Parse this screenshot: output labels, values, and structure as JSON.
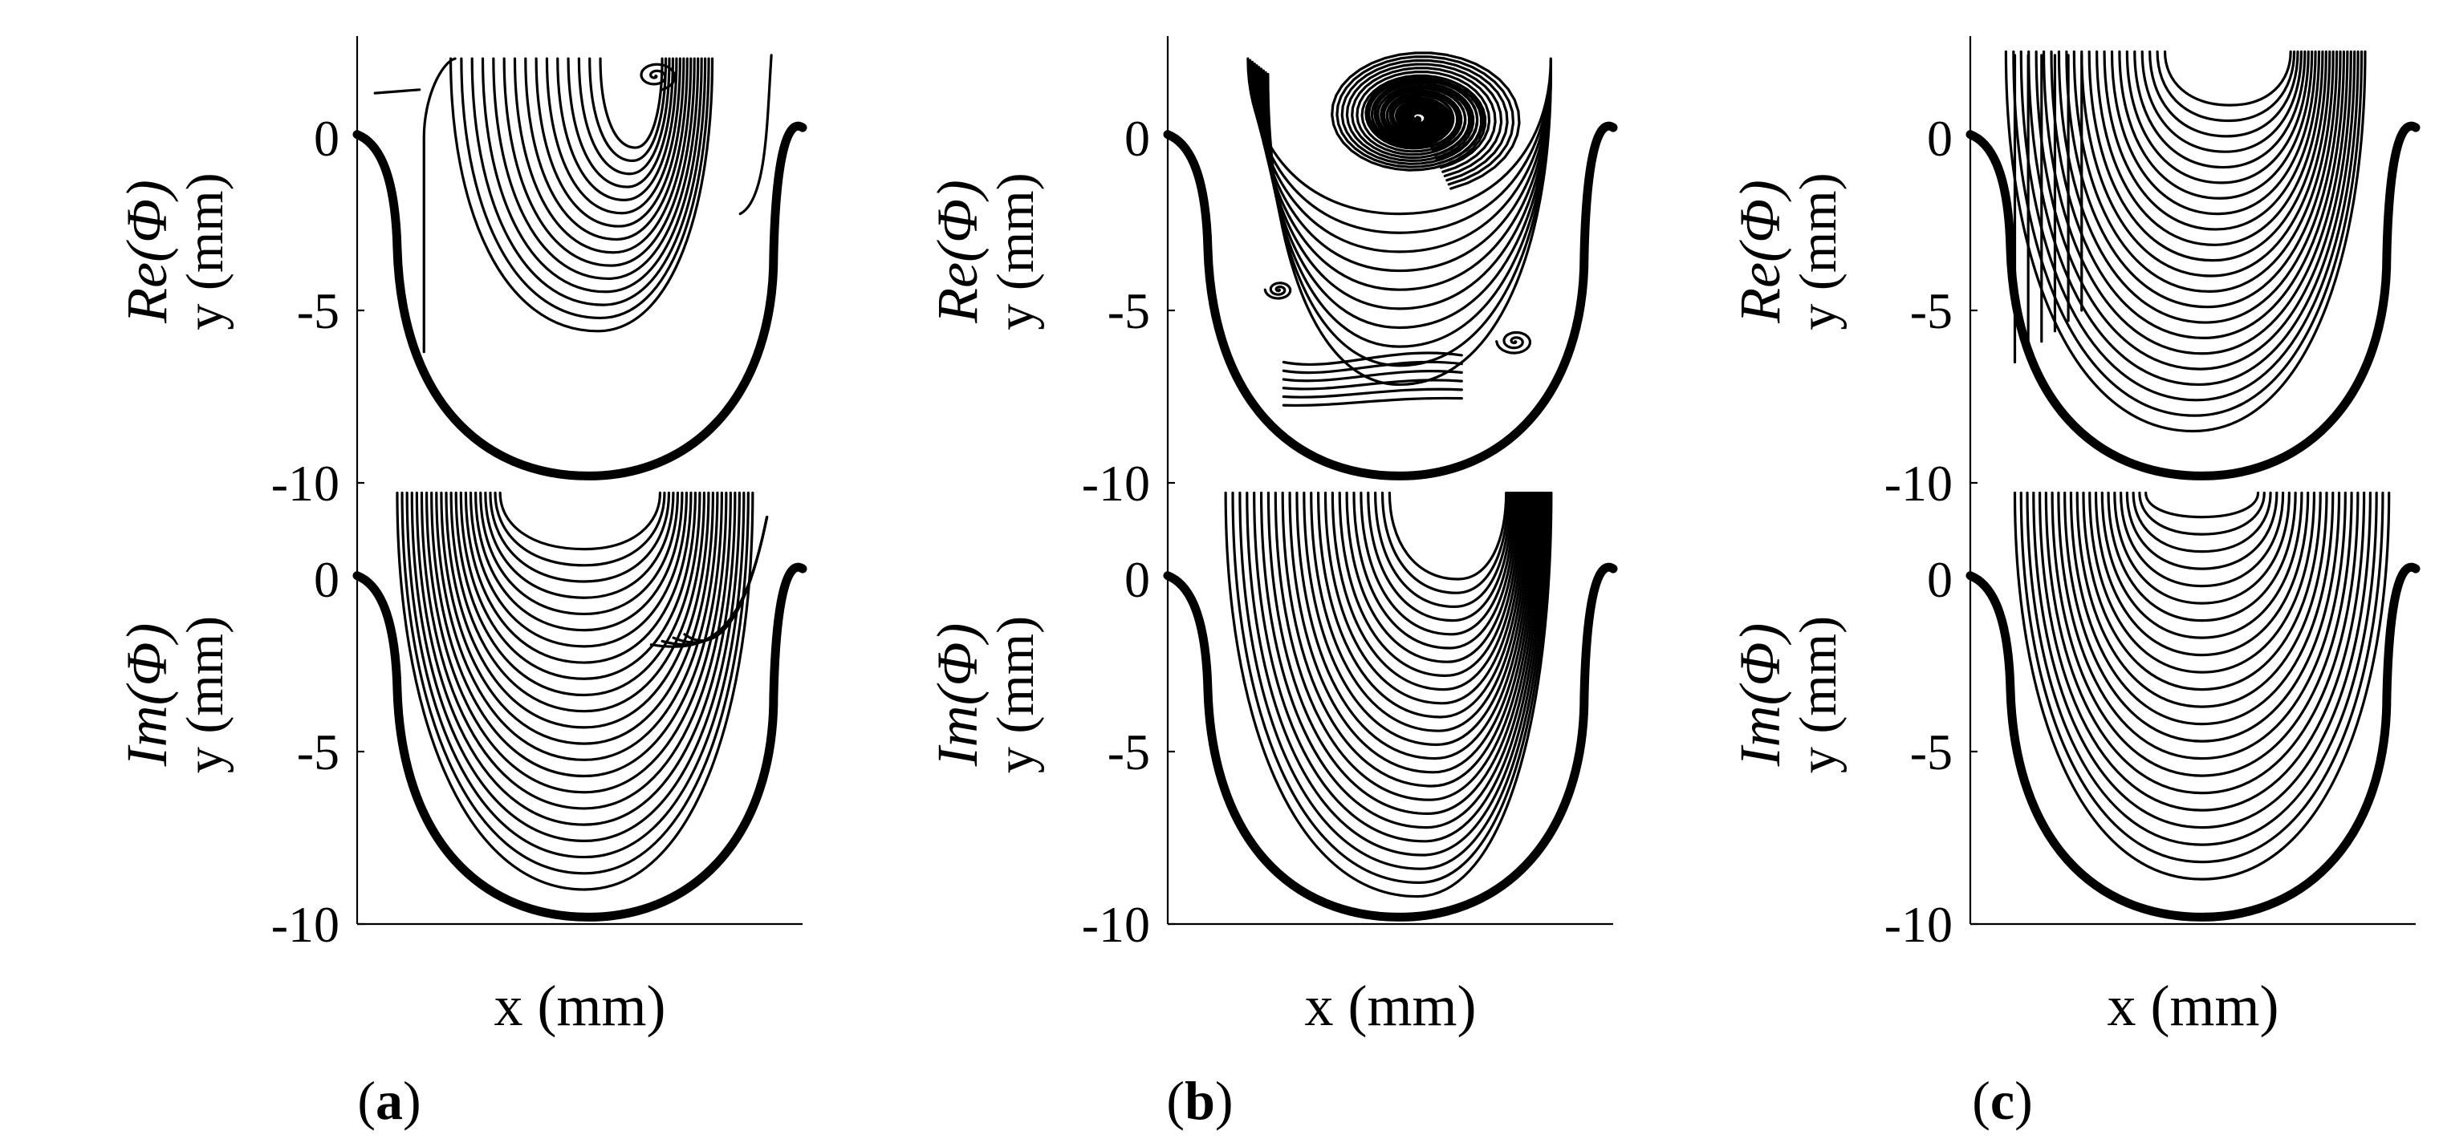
{
  "chart_data": [
    {
      "id": "a",
      "type": "streamline",
      "panel_label": "a",
      "xlabel": "x (mm)",
      "rows": [
        {
          "component": "Re",
          "ylabel_math": "Re(Φ)",
          "ylabel": "y (mm)",
          "yticks": [
            "0",
            "-5",
            "-10"
          ],
          "ylim": [
            -10,
            2.8
          ],
          "pattern": "a-re"
        },
        {
          "component": "Im",
          "ylabel_math": "Im(Φ)",
          "ylabel": "y (mm)",
          "yticks": [
            "0",
            "-5",
            "-10"
          ],
          "ylim": [
            -10,
            2.8
          ],
          "pattern": "a-im"
        }
      ]
    },
    {
      "id": "b",
      "type": "streamline",
      "panel_label": "b",
      "xlabel": "x (mm)",
      "rows": [
        {
          "component": "Re",
          "ylabel_math": "Re(Φ)",
          "ylabel": "y (mm)",
          "yticks": [
            "0",
            "-5",
            "-10"
          ],
          "ylim": [
            -10,
            2.8
          ],
          "pattern": "b-re"
        },
        {
          "component": "Im",
          "ylabel_math": "Im(Φ)",
          "ylabel": "y (mm)",
          "yticks": [
            "0",
            "-5",
            "-10"
          ],
          "ylim": [
            -10,
            2.8
          ],
          "pattern": "b-im"
        }
      ]
    },
    {
      "id": "c",
      "type": "streamline",
      "panel_label": "c",
      "xlabel": "x (mm)",
      "rows": [
        {
          "component": "Re",
          "ylabel_math": "Re(Φ)",
          "ylabel": "y (mm)",
          "yticks": [
            "0",
            "-5",
            "-10"
          ],
          "ylim": [
            -10,
            2.8
          ],
          "pattern": "c-re"
        },
        {
          "component": "Im",
          "ylabel_math": "Im(Φ)",
          "ylabel": "y (mm)",
          "yticks": [
            "0",
            "-5",
            "-10"
          ],
          "ylim": [
            -10,
            2.8
          ],
          "pattern": "c-im"
        }
      ]
    }
  ],
  "panel_labels": {
    "a": "(a)",
    "b": "(b)",
    "c": "(c)"
  }
}
